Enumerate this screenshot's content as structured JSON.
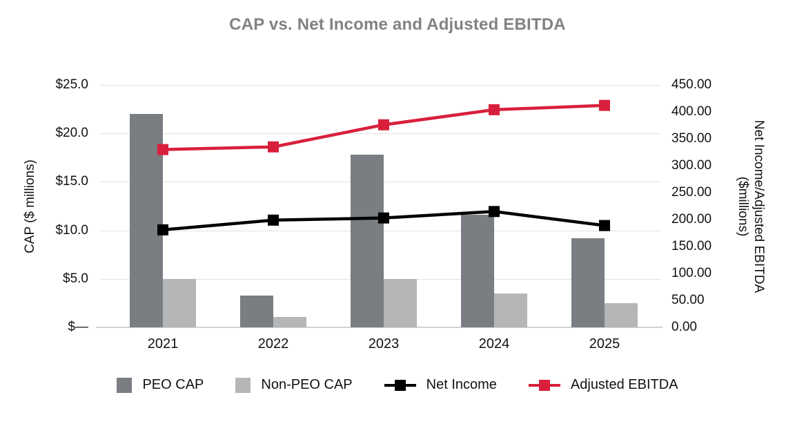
{
  "title": "CAP vs. Net Income and Adjusted EBITDA",
  "colors": {
    "peo_cap": "#7A7D81",
    "non_peo_cap": "#B5B6B8",
    "net_income": "#000000",
    "adjusted_ebitda": "#D8203C",
    "title_text": "#808285",
    "gridline": "#E1E1E2",
    "baseline": "#D2D3D5"
  },
  "chart_data": {
    "type": "combo-bar-line",
    "categories": [
      "2021",
      "2022",
      "2023",
      "2024",
      "2025"
    ],
    "bar_series": [
      {
        "name": "PEO CAP",
        "axis": "left",
        "color_key": "peo_cap",
        "values": [
          22.0,
          3.3,
          17.8,
          11.6,
          9.2
        ]
      },
      {
        "name": "Non-PEO CAP",
        "axis": "left",
        "color_key": "non_peo_cap",
        "values": [
          5.0,
          1.1,
          5.0,
          3.5,
          2.5
        ]
      }
    ],
    "line_series": [
      {
        "name": "Net Income",
        "axis": "right",
        "color_key": "net_income",
        "values": [
          181,
          199,
          203,
          215,
          189
        ]
      },
      {
        "name": "Adjusted EBITDA",
        "axis": "right",
        "color_key": "adjusted_ebitda",
        "values": [
          330,
          335,
          376,
          404,
          412
        ]
      }
    ],
    "left_axis": {
      "title": "CAP ($ millions)",
      "min": 0,
      "max": 25,
      "tick_labels": [
        "$25.0",
        "$20.0",
        "$15.0",
        "$10.0",
        "$5.0",
        "$—"
      ]
    },
    "right_axis": {
      "title_line1": "Net Income/Adjusted EBITDA",
      "title_line2": "($millions)",
      "min": 0,
      "max": 450,
      "tick_labels": [
        "450.00",
        "400.00",
        "350.00",
        "300.00",
        "250.00",
        "200.00",
        "150.00",
        "100.00",
        "50.00",
        "0.00"
      ]
    },
    "legend": [
      "PEO CAP",
      "Non-PEO CAP",
      "Net Income",
      "Adjusted EBITDA"
    ],
    "grid": "horizontal",
    "legend_position": "bottom"
  }
}
